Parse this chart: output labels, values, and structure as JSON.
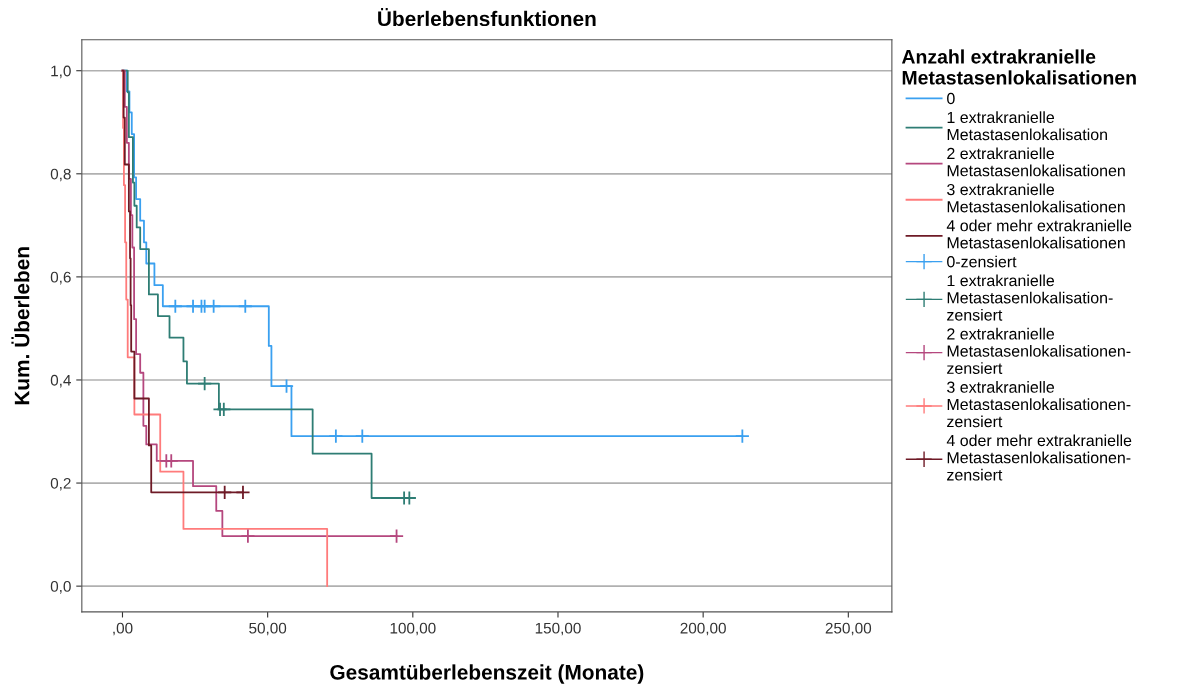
{
  "chart_data": {
    "type": "step",
    "title": "Überlebensfunktionen",
    "xlabel": "Gesamtüberlebenszeit (Monate)",
    "ylabel": "Kum. Überleben",
    "legend_title": "Anzahl extrakranielle\nMetastasenlokalisationen",
    "legend": "right",
    "grid": "y",
    "xlim": [
      -14,
      265
    ],
    "ylim": [
      -0.05,
      1.06
    ],
    "xticks": [
      {
        "value": 0,
        "label": ",00"
      },
      {
        "value": 50,
        "label": "50,00"
      },
      {
        "value": 100,
        "label": "100,00"
      },
      {
        "value": 150,
        "label": "150,00"
      },
      {
        "value": 200,
        "label": "200,00"
      },
      {
        "value": 250,
        "label": "250,00"
      }
    ],
    "yticks": [
      {
        "value": 0,
        "label": "0,0"
      },
      {
        "value": 0.2,
        "label": "0,2"
      },
      {
        "value": 0.4,
        "label": "0,4"
      },
      {
        "value": 0.6,
        "label": "0,6"
      },
      {
        "value": 0.8,
        "label": "0,8"
      },
      {
        "value": 1.0,
        "label": "1,0"
      }
    ],
    "series": [
      {
        "name": "0",
        "color": "#3aa0f0",
        "marker": "none",
        "x": [
          0,
          1.5,
          2.4,
          3.2,
          4.0,
          4.7,
          6.1,
          7.4,
          8.2,
          11.0,
          13.9,
          50.4,
          51.3,
          58.2,
          213.5
        ],
        "values": [
          1.0,
          0.96,
          0.919,
          0.877,
          0.793,
          0.751,
          0.709,
          0.667,
          0.626,
          0.584,
          0.543,
          0.466,
          0.388,
          0.291,
          0.291
        ]
      },
      {
        "name": "1 extrakranielle\nMetastasenlokalisation",
        "color": "#2e7d74",
        "marker": "none",
        "x": [
          0,
          1.8,
          2.2,
          3.6,
          4.1,
          4.9,
          6.1,
          9.1,
          12.2,
          16.2,
          21.0,
          22.2,
          33.2,
          65.5,
          85.8,
          98.8
        ],
        "values": [
          1.0,
          0.958,
          0.871,
          0.783,
          0.738,
          0.696,
          0.654,
          0.566,
          0.524,
          0.482,
          0.436,
          0.393,
          0.343,
          0.257,
          0.171,
          0.171
        ]
      },
      {
        "name": "2 extrakranielle\nMetastasenlokalisationen",
        "color": "#b5477e",
        "marker": "none",
        "x": [
          0,
          0.8,
          1.5,
          2.2,
          2.9,
          3.4,
          4.0,
          4.7,
          6.1,
          7.2,
          8.2,
          11.8,
          24.3,
          32.3,
          34.4,
          94.4
        ],
        "values": [
          1.0,
          0.93,
          0.86,
          0.79,
          0.72,
          0.657,
          0.518,
          0.45,
          0.414,
          0.311,
          0.275,
          0.243,
          0.194,
          0.146,
          0.097,
          0.097
        ]
      },
      {
        "name": "3 extrakranielle\nMetastasenlokalisationen",
        "color": "#ff7b7b",
        "marker": "none",
        "x": [
          0,
          0.2,
          0.5,
          0.9,
          1.3,
          1.8,
          4.1,
          13.0,
          21.0,
          70.5
        ],
        "values": [
          1.0,
          0.889,
          0.778,
          0.667,
          0.556,
          0.444,
          0.333,
          0.222,
          0.111,
          0.0
        ]
      },
      {
        "name": "4 oder mehr extrakranielle\nMetastasenlokalisationen",
        "color": "#6e1a26",
        "marker": "none",
        "x": [
          0,
          0.4,
          0.8,
          2.2,
          2.6,
          2.8,
          3.0,
          4.1,
          9.1,
          9.9,
          41.5
        ],
        "values": [
          1.0,
          0.909,
          0.818,
          0.727,
          0.636,
          0.545,
          0.455,
          0.364,
          0.273,
          0.182,
          0.182
        ]
      },
      {
        "name": "0-zensiert",
        "type": "scatter",
        "color": "#3aa0f0",
        "marker": "cross",
        "x": [
          18.2,
          24.3,
          27.2,
          28.3,
          31.4,
          42.3,
          56.5,
          73.5,
          82.6,
          213.5
        ],
        "values": [
          0.543,
          0.543,
          0.543,
          0.543,
          0.543,
          0.543,
          0.388,
          0.291,
          0.291,
          0.291
        ]
      },
      {
        "name": "1 extrakranielle\nMetastasenlokalisation-\nzensiert",
        "type": "scatter",
        "color": "#2e7d74",
        "marker": "cross",
        "x": [
          28.3,
          33.6,
          34.9,
          97.0,
          98.8
        ],
        "values": [
          0.393,
          0.343,
          0.343,
          0.171,
          0.171
        ]
      },
      {
        "name": "2 extrakranielle\nMetastasenlokalisationen-\nzensiert",
        "type": "scatter",
        "color": "#b5477e",
        "marker": "cross",
        "x": [
          15.1,
          16.8,
          43.2,
          94.4
        ],
        "values": [
          0.243,
          0.243,
          0.097,
          0.097
        ]
      },
      {
        "name": "3 extrakranielle\nMetastasenlokalisationen-\nzensiert",
        "type": "scatter",
        "color": "#ff7b7b",
        "marker": "cross"
      },
      {
        "name": "4 oder mehr extrakranielle\nMetastasenlokalisationen-\nzensiert",
        "type": "scatter",
        "color": "#6e1a26",
        "marker": "cross",
        "x": [
          35.2,
          41.5
        ],
        "values": [
          0.182,
          0.182
        ]
      }
    ]
  }
}
